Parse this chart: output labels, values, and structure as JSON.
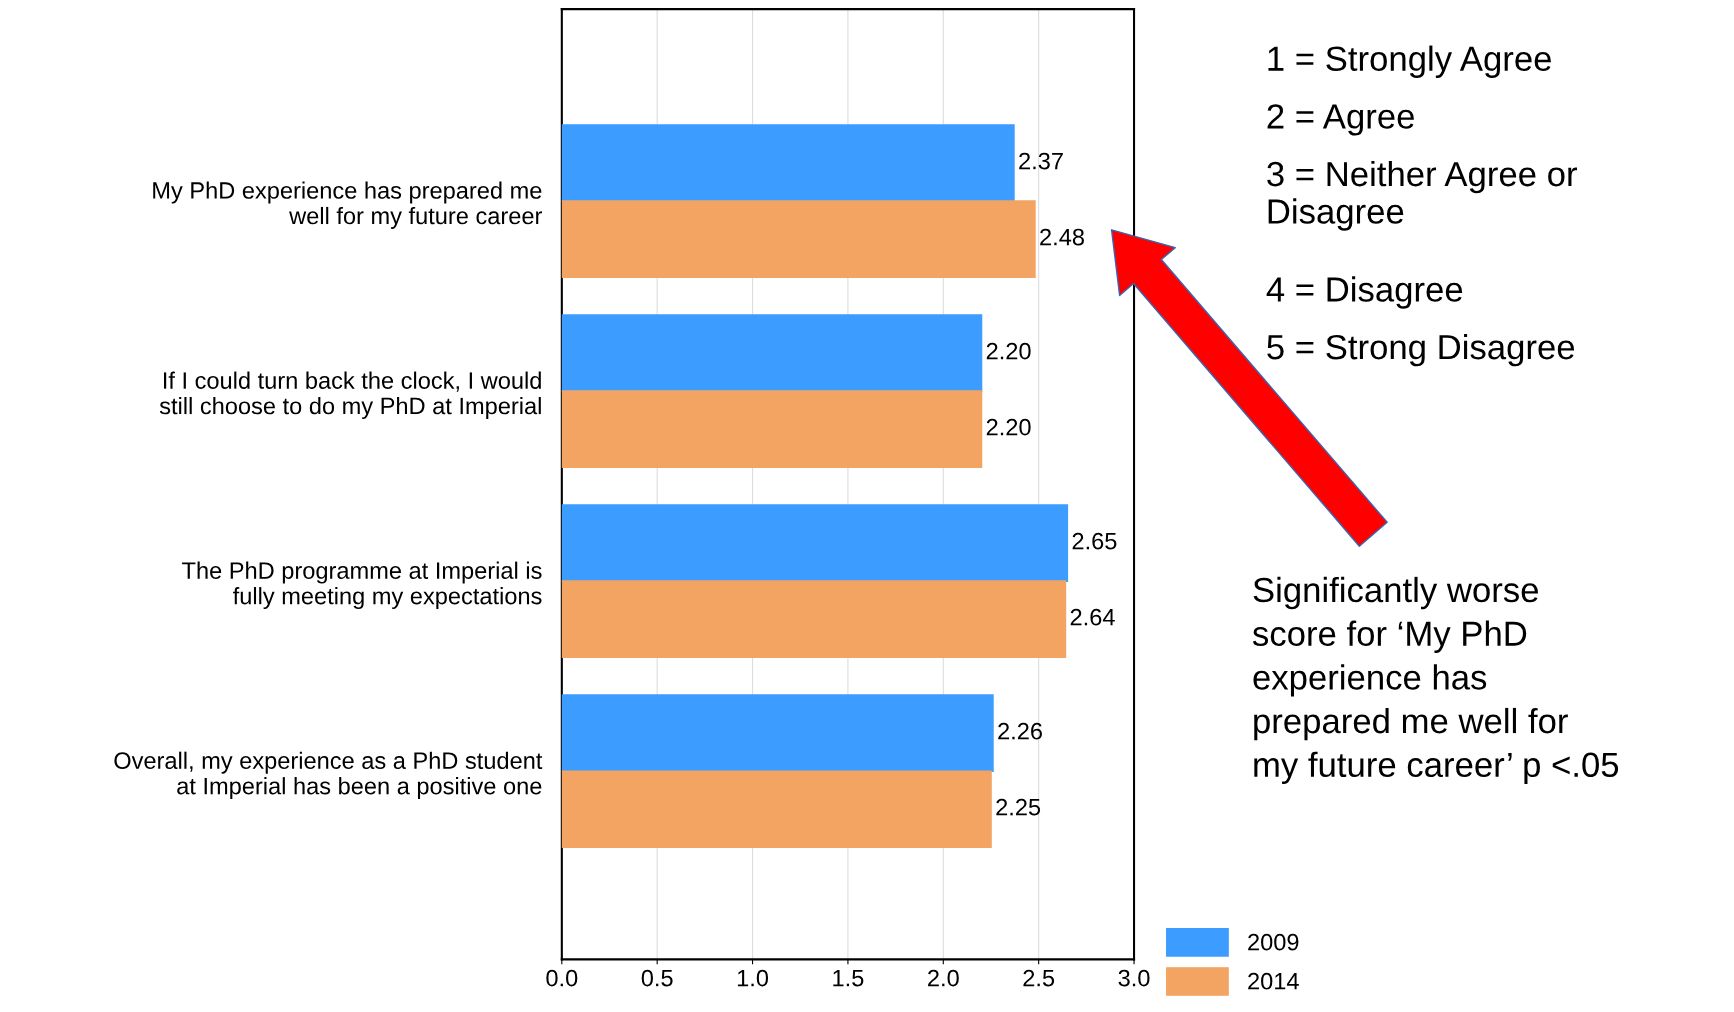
{
  "chart_data": {
    "type": "bar",
    "orientation": "horizontal",
    "categories": [
      "My PhD experience has prepared me\nwell for my future career",
      "If I could turn back the clock, I would\nstill choose to do my PhD at Imperial",
      "The PhD programme at Imperial is\nfully meeting my expectations",
      "Overall, my experience as a PhD student\nat Imperial has been a positive one"
    ],
    "series": [
      {
        "name": "2009",
        "color": "#3d9cff",
        "values": [
          2.37,
          2.2,
          2.65,
          2.26
        ],
        "value_labels": [
          "2.37",
          "2.20",
          "2.65",
          "2.26"
        ]
      },
      {
        "name": "2014",
        "color": "#f4a462",
        "values": [
          2.48,
          2.2,
          2.64,
          2.25
        ],
        "value_labels": [
          "2.48",
          "2.20",
          "2.64",
          "2.25"
        ]
      }
    ],
    "xlim": [
      0,
      3
    ],
    "xticks": [
      {
        "value": 0,
        "label": "0.0"
      },
      {
        "value": 0.5,
        "label": "0.5"
      },
      {
        "value": 1,
        "label": "1.0"
      },
      {
        "value": 1.5,
        "label": "1.5"
      },
      {
        "value": 2,
        "label": "2.0"
      },
      {
        "value": 2.5,
        "label": "2.5"
      },
      {
        "value": 3,
        "label": "3.0"
      }
    ],
    "grid": "x",
    "legend": "bottom right",
    "annotations": [
      "1 = Strongly Agree",
      "2 = Agree",
      "3 = Neither Agree or\nDisagree",
      "4 = Disagree",
      "5 = Strong Disagree",
      "Significantly worse\nscore for ‘My PhD\nexperience has\nprepared me well for\nmy future career’ p <.05"
    ]
  }
}
